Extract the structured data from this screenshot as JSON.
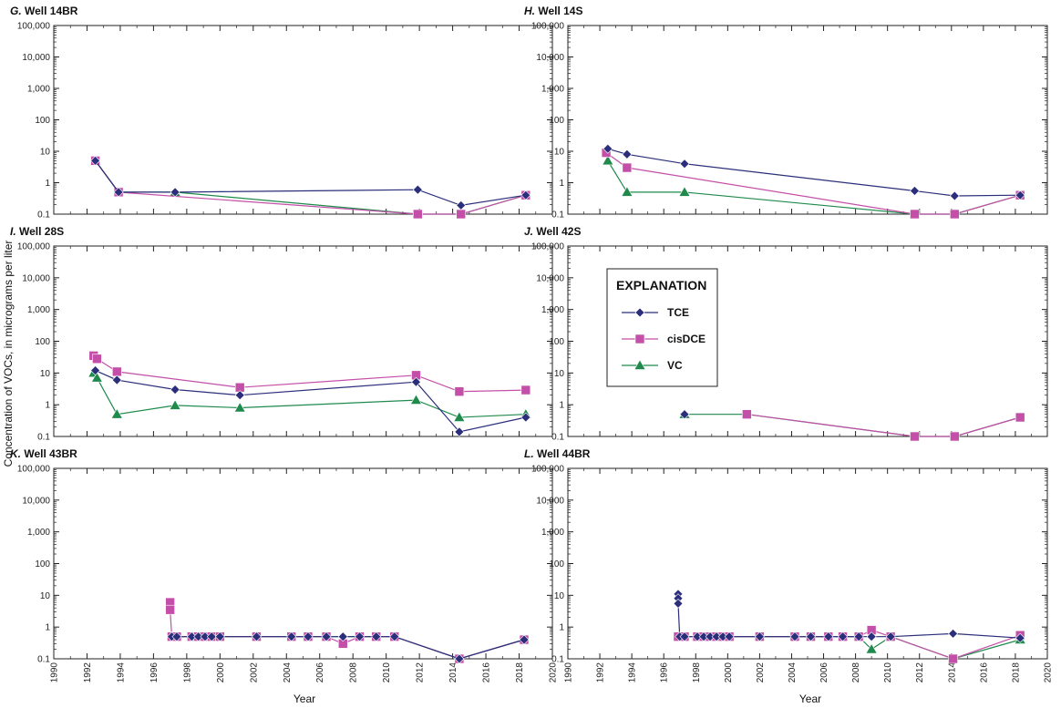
{
  "figure": {
    "ylabel": "Concentration of VOCs, in micrograms per liter",
    "xlabel": "Year"
  },
  "legend": {
    "title": "EXPLANATION",
    "entries": [
      "TCE",
      "cisDCE",
      "VC"
    ]
  },
  "colors": {
    "TCE": "#2b2e7a",
    "cisDCE": "#c44fa8",
    "VC": "#1f8a4c"
  },
  "chart_data": [
    {
      "type": "line",
      "panel_letter": "G.",
      "panel_name": "Well 14BR",
      "xlim": [
        1990,
        2020
      ],
      "ylim": [
        0.1,
        100000
      ],
      "yscale": "log",
      "xticks": [
        "1990",
        "1992",
        "1994",
        "1996",
        "1998",
        "2000",
        "2002",
        "2004",
        "2006",
        "2008",
        "2010",
        "2012",
        "2014",
        "2016",
        "2018",
        "2020"
      ],
      "yticks": [
        "0.1",
        "1",
        "10",
        "100",
        "1,000",
        "10,000",
        "100,000"
      ],
      "series": [
        {
          "name": "TCE",
          "x": [
            1992.5,
            1993.9,
            1997.3,
            2011.9,
            2014.5,
            2018.4
          ],
          "y": [
            5,
            0.5,
            0.5,
            0.6,
            0.19,
            0.4
          ]
        },
        {
          "name": "cisDCE",
          "x": [
            1992.5,
            1993.9,
            2011.9,
            2014.5,
            2018.4
          ],
          "y": [
            5,
            0.5,
            0.1,
            0.1,
            0.4
          ]
        },
        {
          "name": "VC",
          "x": [
            1992.5,
            1993.9,
            1997.3,
            2011.9,
            2014.5,
            2018.4
          ],
          "y": [
            5,
            0.5,
            0.5,
            0.1,
            0.1,
            0.4
          ]
        }
      ]
    },
    {
      "type": "line",
      "panel_letter": "H.",
      "panel_name": "Well 14S",
      "xlim": [
        1990,
        2020
      ],
      "ylim": [
        0.1,
        100000
      ],
      "yscale": "log",
      "xticks": [
        "1990",
        "1992",
        "1994",
        "1996",
        "1998",
        "2000",
        "2002",
        "2004",
        "2006",
        "2008",
        "2010",
        "2012",
        "2014",
        "2016",
        "2018",
        "2020"
      ],
      "yticks": [
        "0.1",
        "1",
        "10",
        "100",
        "1,000",
        "10,000",
        "100,000"
      ],
      "series": [
        {
          "name": "TCE",
          "x": [
            1992.5,
            1993.7,
            1997.3,
            2011.7,
            2014.2,
            2018.3
          ],
          "y": [
            12,
            8,
            4,
            0.55,
            0.38,
            0.4
          ]
        },
        {
          "name": "cisDCE",
          "x": [
            1992.4,
            1993.7,
            2011.7,
            2014.2,
            2018.3
          ],
          "y": [
            9,
            3,
            0.1,
            0.1,
            0.4
          ]
        },
        {
          "name": "VC",
          "x": [
            1992.5,
            1993.7,
            1997.3,
            2011.7,
            2014.2,
            2018.3
          ],
          "y": [
            5,
            0.5,
            0.5,
            0.1,
            0.1,
            0.4
          ]
        }
      ]
    },
    {
      "type": "line",
      "panel_letter": "I.",
      "panel_name": "Well 28S",
      "xlim": [
        1990,
        2020
      ],
      "ylim": [
        0.1,
        100000
      ],
      "yscale": "log",
      "xticks": [
        "1990",
        "1992",
        "1994",
        "1996",
        "1998",
        "2000",
        "2002",
        "2004",
        "2006",
        "2008",
        "2010",
        "2012",
        "2014",
        "2016",
        "2018",
        "2020"
      ],
      "yticks": [
        "0.1",
        "1",
        "10",
        "100",
        "1,000",
        "10,000",
        "100,000"
      ],
      "series": [
        {
          "name": "TCE",
          "x": [
            1992.5,
            1993.8,
            1997.3,
            2001.2,
            2011.8,
            2014.4,
            2018.4
          ],
          "y": [
            12,
            6,
            3,
            2,
            5.2,
            0.14,
            0.4
          ]
        },
        {
          "name": "cisDCE",
          "x": [
            1992.4,
            1992.6,
            1993.8,
            2001.2,
            2011.8,
            2014.4,
            2018.4
          ],
          "y": [
            35,
            28,
            11,
            3.5,
            8.5,
            2.6,
            2.9
          ]
        },
        {
          "name": "VC",
          "x": [
            1992.4,
            1992.6,
            1993.8,
            1997.3,
            2001.2,
            2011.8,
            2014.4,
            2018.4
          ],
          "y": [
            10,
            7,
            0.5,
            0.95,
            0.8,
            1.4,
            0.4,
            0.5
          ]
        }
      ]
    },
    {
      "type": "line",
      "panel_letter": "J.",
      "panel_name": "Well 42S",
      "xlim": [
        1990,
        2020
      ],
      "ylim": [
        0.1,
        100000
      ],
      "yscale": "log",
      "xticks": [
        "1990",
        "1992",
        "1994",
        "1996",
        "1998",
        "2000",
        "2002",
        "2004",
        "2006",
        "2008",
        "2010",
        "2012",
        "2014",
        "2016",
        "2018",
        "2020"
      ],
      "yticks": [
        "0.1",
        "1",
        "10",
        "100",
        "1,000",
        "10,000",
        "100,000"
      ],
      "series": [
        {
          "name": "TCE",
          "x": [
            1997.3
          ],
          "y": [
            0.5
          ]
        },
        {
          "name": "cisDCE",
          "x": [
            2001.2,
            2011.7,
            2014.2,
            2018.3
          ],
          "y": [
            0.5,
            0.1,
            0.1,
            0.4
          ]
        },
        {
          "name": "VC",
          "x": [
            1997.3,
            2001.2,
            2011.7,
            2014.2,
            2018.3
          ],
          "y": [
            0.5,
            0.5,
            0.1,
            0.1,
            0.4
          ]
        }
      ]
    },
    {
      "type": "line",
      "panel_letter": "K.",
      "panel_name": "Well 43BR",
      "xlim": [
        1990,
        2020
      ],
      "ylim": [
        0.1,
        100000
      ],
      "yscale": "log",
      "xticks": [
        "1990",
        "1992",
        "1994",
        "1996",
        "1998",
        "2000",
        "2002",
        "2004",
        "2006",
        "2008",
        "2010",
        "2012",
        "2014",
        "2016",
        "2018",
        "2020"
      ],
      "yticks": [
        "0.1",
        "1",
        "10",
        "100",
        "1,000",
        "10,000",
        "100,000"
      ],
      "series": [
        {
          "name": "TCE",
          "x": [
            1997.1,
            1997.4,
            1998.3,
            1998.7,
            1999.1,
            1999.5,
            2000.0,
            2002.2,
            2004.3,
            2005.3,
            2006.4,
            2007.4,
            2008.4,
            2009.4,
            2010.5,
            2014.4,
            2018.3
          ],
          "y": [
            0.5,
            0.5,
            0.5,
            0.5,
            0.5,
            0.5,
            0.5,
            0.5,
            0.5,
            0.5,
            0.5,
            0.5,
            0.5,
            0.5,
            0.5,
            0.1,
            0.4
          ]
        },
        {
          "name": "cisDCE",
          "x": [
            1997.0,
            1997.0,
            1997.1,
            1997.4,
            1998.3,
            1998.7,
            1999.1,
            1999.5,
            2000.0,
            2002.2,
            2004.3,
            2005.3,
            2006.4,
            2007.4,
            2008.4,
            2009.4,
            2010.5,
            2014.4,
            2018.3
          ],
          "y": [
            6,
            3.5,
            0.5,
            0.5,
            0.5,
            0.5,
            0.5,
            0.5,
            0.5,
            0.5,
            0.5,
            0.5,
            0.5,
            0.3,
            0.5,
            0.5,
            0.5,
            0.1,
            0.4
          ]
        },
        {
          "name": "VC",
          "x": [
            1997.1,
            1997.4,
            1998.3,
            1998.7,
            1999.1,
            1999.5,
            2000.0,
            2002.2,
            2004.3,
            2005.3,
            2006.4,
            2008.4,
            2009.4,
            2010.5,
            2014.4,
            2018.3
          ],
          "y": [
            0.5,
            0.5,
            0.5,
            0.5,
            0.5,
            0.5,
            0.5,
            0.5,
            0.5,
            0.5,
            0.5,
            0.5,
            0.5,
            0.5,
            0.1,
            0.4
          ]
        }
      ]
    },
    {
      "type": "line",
      "panel_letter": "L.",
      "panel_name": "Well 44BR",
      "xlim": [
        1990,
        2020
      ],
      "ylim": [
        0.1,
        100000
      ],
      "yscale": "log",
      "xticks": [
        "1990",
        "1992",
        "1994",
        "1996",
        "1998",
        "2000",
        "2002",
        "2004",
        "2006",
        "2008",
        "2010",
        "2012",
        "2014",
        "2016",
        "2018",
        "2020"
      ],
      "yticks": [
        "0.1",
        "1",
        "10",
        "100",
        "1,000",
        "10,000",
        "100,000"
      ],
      "series": [
        {
          "name": "TCE",
          "x": [
            1996.9,
            1996.9,
            1996.9,
            1997.0,
            1997.3,
            1998.1,
            1998.5,
            1998.9,
            1999.3,
            1999.7,
            2000.1,
            2002.0,
            2004.2,
            2005.2,
            2006.3,
            2007.2,
            2008.2,
            2009.0,
            2010.2,
            2014.1,
            2018.3
          ],
          "y": [
            11,
            8,
            5.5,
            0.5,
            0.5,
            0.5,
            0.5,
            0.5,
            0.5,
            0.5,
            0.5,
            0.5,
            0.5,
            0.5,
            0.5,
            0.5,
            0.5,
            0.5,
            0.5,
            0.62,
            0.45
          ]
        },
        {
          "name": "cisDCE",
          "x": [
            1996.9,
            1997.3,
            1998.1,
            1998.5,
            1998.9,
            1999.3,
            1999.7,
            2000.1,
            2002.0,
            2004.2,
            2005.2,
            2006.3,
            2007.2,
            2008.2,
            2009.0,
            2010.2,
            2014.1,
            2018.3
          ],
          "y": [
            0.5,
            0.5,
            0.5,
            0.5,
            0.5,
            0.5,
            0.5,
            0.5,
            0.5,
            0.5,
            0.5,
            0.5,
            0.5,
            0.5,
            0.8,
            0.5,
            0.1,
            0.55
          ]
        },
        {
          "name": "VC",
          "x": [
            1996.9,
            1997.3,
            1998.1,
            1998.5,
            1998.9,
            1999.3,
            1999.7,
            2000.1,
            2002.0,
            2004.2,
            2005.2,
            2006.3,
            2007.2,
            2008.2,
            2009.0,
            2010.2,
            2014.1,
            2018.3
          ],
          "y": [
            0.5,
            0.5,
            0.5,
            0.5,
            0.5,
            0.5,
            0.5,
            0.5,
            0.5,
            0.5,
            0.5,
            0.5,
            0.5,
            0.5,
            0.2,
            0.5,
            0.1,
            0.4
          ]
        }
      ]
    }
  ]
}
